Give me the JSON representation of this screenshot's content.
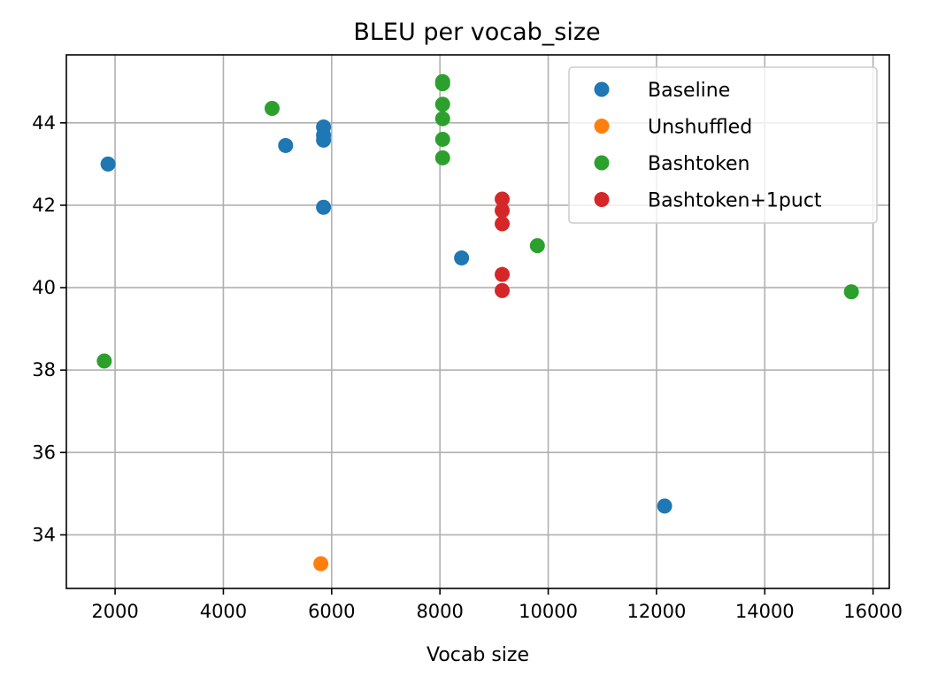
{
  "chart_data": {
    "type": "scatter",
    "title": "BLEU per vocab_size",
    "xlabel": "Vocab size",
    "ylabel": "",
    "xlim": [
      1100,
      16300
    ],
    "ylim": [
      32.7,
      45.65
    ],
    "xticks": [
      2000,
      4000,
      6000,
      8000,
      10000,
      12000,
      14000,
      16000
    ],
    "yticks": [
      34,
      36,
      38,
      40,
      42,
      44
    ],
    "grid": true,
    "legend_position": "top-right",
    "series": [
      {
        "name": "Baseline",
        "color": "#1f77b4",
        "points": [
          {
            "x": 1870,
            "y": 43.0
          },
          {
            "x": 5150,
            "y": 43.45
          },
          {
            "x": 5850,
            "y": 43.9
          },
          {
            "x": 5850,
            "y": 43.7
          },
          {
            "x": 5850,
            "y": 43.58
          },
          {
            "x": 5850,
            "y": 41.95
          },
          {
            "x": 8400,
            "y": 40.72
          },
          {
            "x": 12150,
            "y": 34.7
          }
        ]
      },
      {
        "name": "Unshuffled",
        "color": "#ff7f0e",
        "points": [
          {
            "x": 5800,
            "y": 33.3
          }
        ]
      },
      {
        "name": "Bashtoken",
        "color": "#2ca02c",
        "points": [
          {
            "x": 1800,
            "y": 38.22
          },
          {
            "x": 4900,
            "y": 44.35
          },
          {
            "x": 8050,
            "y": 45.0
          },
          {
            "x": 8050,
            "y": 44.95
          },
          {
            "x": 8050,
            "y": 44.45
          },
          {
            "x": 8050,
            "y": 44.1
          },
          {
            "x": 8050,
            "y": 43.6
          },
          {
            "x": 8050,
            "y": 43.15
          },
          {
            "x": 9800,
            "y": 41.02
          },
          {
            "x": 15600,
            "y": 39.9
          }
        ]
      },
      {
        "name": "Bashtoken+1puct",
        "color": "#d62728",
        "points": [
          {
            "x": 9150,
            "y": 42.15
          },
          {
            "x": 9150,
            "y": 41.87
          },
          {
            "x": 9150,
            "y": 41.55
          },
          {
            "x": 9150,
            "y": 40.32
          },
          {
            "x": 9150,
            "y": 39.93
          }
        ]
      }
    ]
  }
}
